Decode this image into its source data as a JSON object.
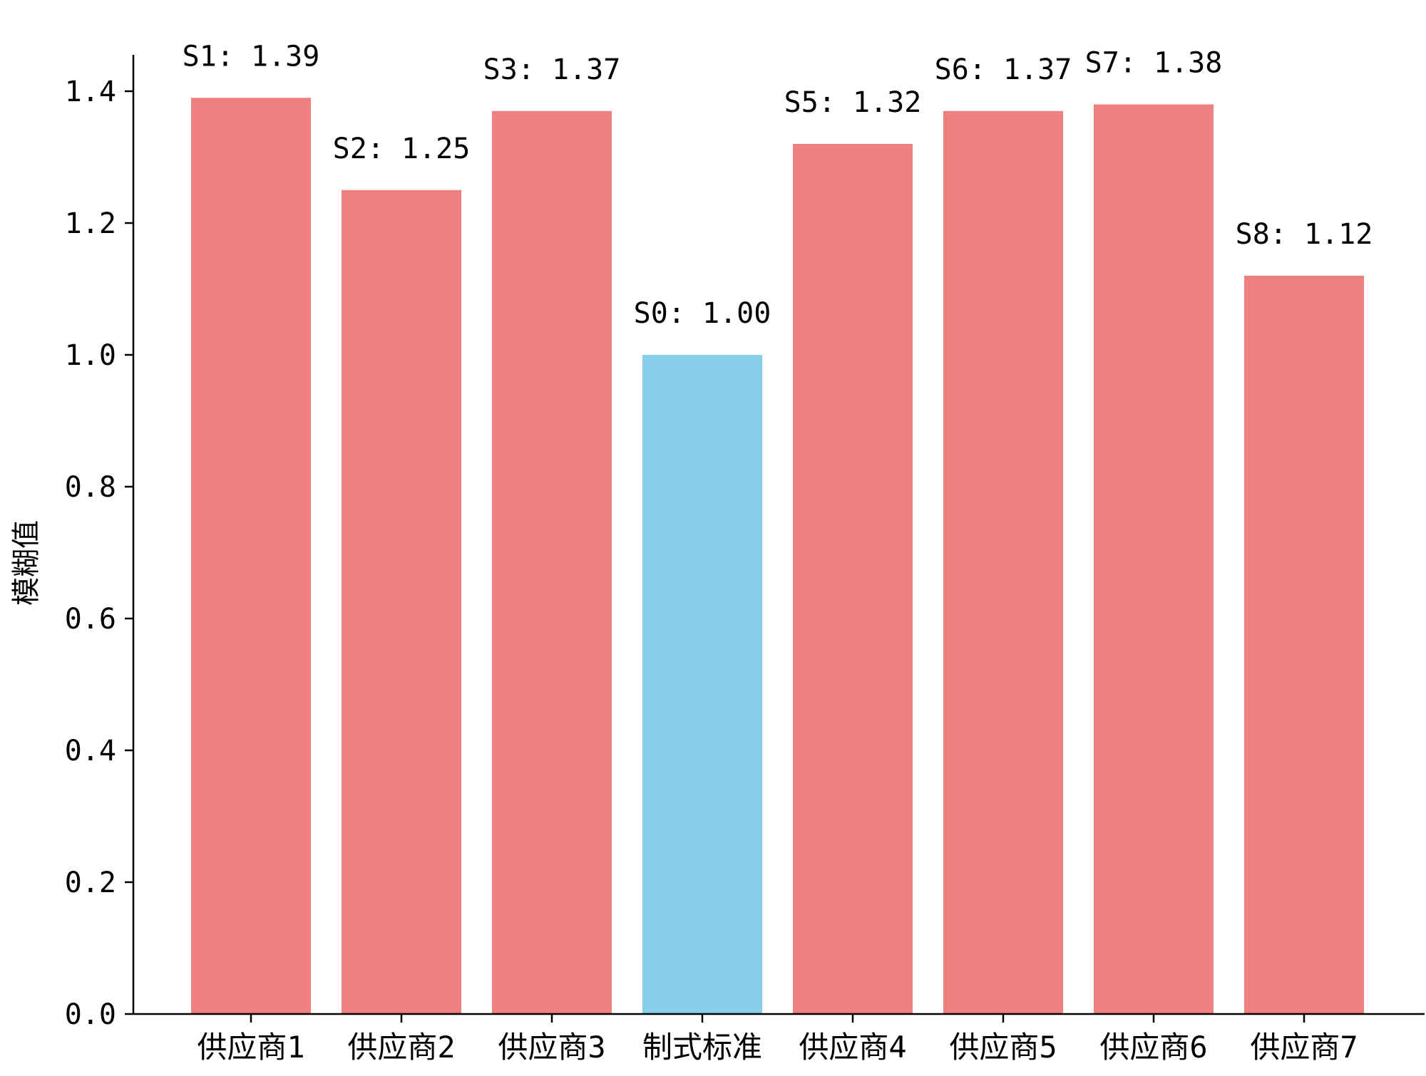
{
  "chart_data": {
    "type": "bar",
    "title": "",
    "xlabel": "",
    "ylabel": "模糊值",
    "categories": [
      "供应商1",
      "供应商2",
      "供应商3",
      "制式标准",
      "供应商4",
      "供应商5",
      "供应商6",
      "供应商7"
    ],
    "values": [
      1.39,
      1.25,
      1.37,
      1.0,
      1.32,
      1.37,
      1.38,
      1.12
    ],
    "data_labels": [
      "S1: 1.39",
      "S2: 1.25",
      "S3: 1.37",
      "S0: 1.00",
      "S5: 1.32",
      "S6: 1.37",
      "S7: 1.38",
      "S8: 1.12"
    ],
    "bar_colors": [
      "#f08080",
      "#f08080",
      "#f08080",
      "#87ceeb",
      "#f08080",
      "#f08080",
      "#f08080",
      "#f08080"
    ],
    "ylim": [
      0,
      1.45
    ],
    "yticks": [
      0.0,
      0.2,
      0.4,
      0.6,
      0.8,
      1.0,
      1.2,
      1.4
    ],
    "ytick_labels": [
      "0.0",
      "0.2",
      "0.4",
      "0.6",
      "0.8",
      "1.0",
      "1.2",
      "1.4"
    ],
    "grid": false,
    "legend": "none"
  }
}
